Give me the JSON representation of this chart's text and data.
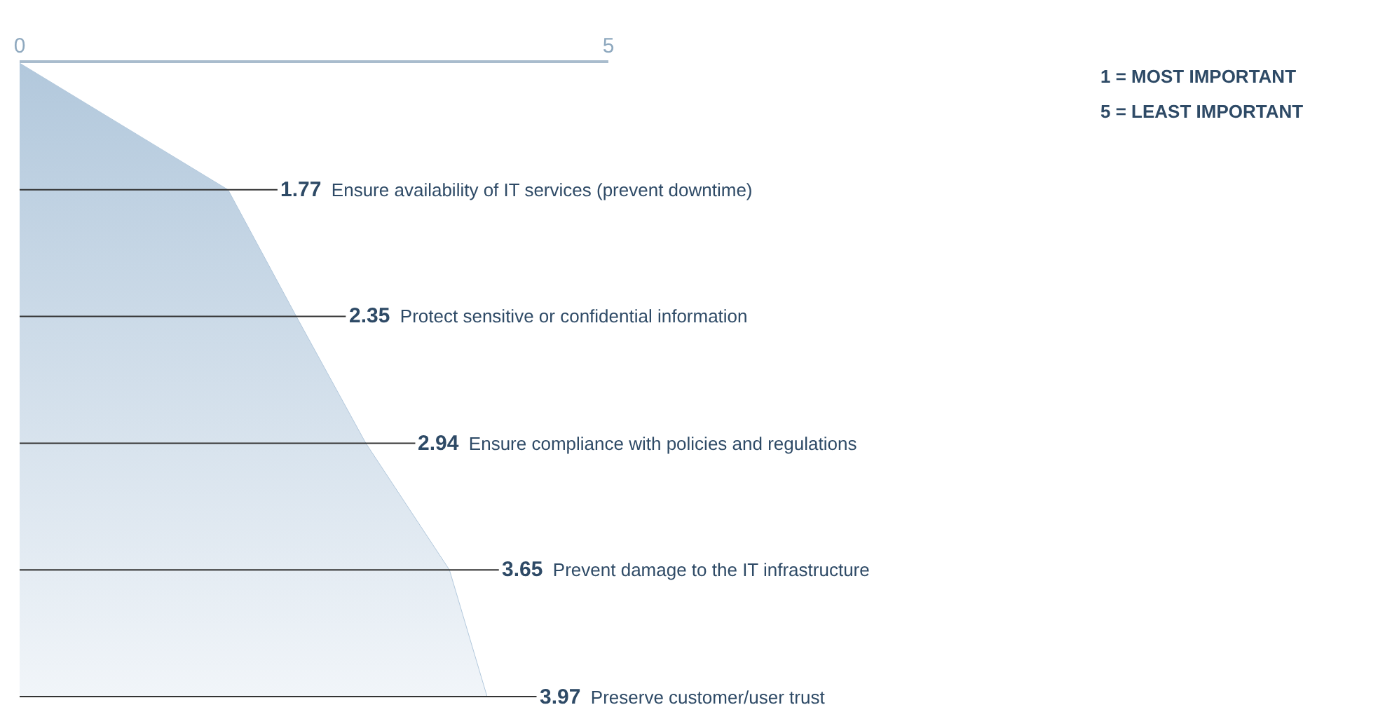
{
  "chart_data": {
    "type": "area",
    "categories": [
      null,
      "Ensure availability of IT services (prevent downtime)",
      "Protect sensitive or confidential information",
      "Ensure compliance with policies and regulations",
      "Prevent damage to the IT infrastructure",
      "Preserve customer/user trust"
    ],
    "values": [
      0,
      1.77,
      2.35,
      2.94,
      3.65,
      3.97
    ],
    "value_labels": [
      null,
      "1.77",
      "2.35",
      "2.94",
      "3.65",
      "3.97"
    ],
    "color": "#b2c8dc",
    "xlim": [
      0,
      5
    ],
    "xticks": [
      0,
      5
    ],
    "orientation": "horizontal",
    "tick_labels": "x",
    "legend": false,
    "annotations": [
      "1 = MOST IMPORTANT",
      "5 = LEAST IMPORTANT"
    ]
  }
}
